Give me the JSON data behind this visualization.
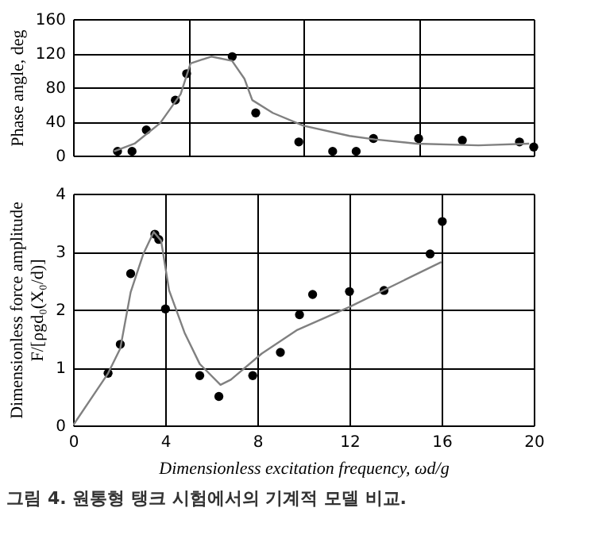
{
  "chart_data": [
    {
      "type": "scatter",
      "ylabel": "Phase angle, deg",
      "xlim": [
        0,
        20
      ],
      "xticks": [
        0,
        5,
        10,
        15,
        20
      ],
      "ylim": [
        0,
        160
      ],
      "yticks": [
        0,
        40,
        80,
        120,
        160
      ],
      "grid": true,
      "tick_labels": "y",
      "series": [
        {
          "color": "#000000",
          "marker": "circle",
          "x": [
            1.93,
            2.56,
            3.18,
            4.44,
            4.93,
            6.91,
            7.93,
            9.8,
            11.27,
            12.29,
            13.04,
            15.0,
            16.9,
            19.38,
            20.0
          ],
          "values": [
            5,
            5,
            30,
            65,
            96,
            116,
            50,
            16,
            5,
            5,
            20,
            20,
            18,
            16,
            10
          ]
        },
        {
          "type": "line",
          "color": "#808080",
          "line_style": "solid",
          "x": [
            1.78,
            2.67,
            3.78,
            4.67,
            5.1,
            6.0,
            6.9,
            7.44,
            7.78,
            8.67,
            10.0,
            12.0,
            13.1,
            14.9,
            17.6,
            19.8
          ],
          "values": [
            5,
            14,
            38,
            72,
            108,
            116,
            111,
            90,
            65,
            50,
            35,
            23,
            19,
            14,
            12,
            14
          ]
        }
      ]
    },
    {
      "type": "scatter",
      "xlabel": "Dimensionless excitation frequency, ωd/g",
      "ylabel": "Dimensionless force amplitude\nF/[ρgd₀(X₀/d)]",
      "xlim": [
        0,
        20
      ],
      "xticks": [
        0,
        4,
        8,
        12,
        16,
        20
      ],
      "ylim": [
        0,
        4
      ],
      "yticks": [
        0,
        1,
        2,
        3,
        4
      ],
      "grid": true,
      "annotations": [
        "그림 4. 원통형 탱크 시험에서의 기계적 모델 비교."
      ],
      "series": [
        {
          "color": "#000000",
          "marker": "circle",
          "x": [
            1.52,
            2.05,
            2.5,
            3.55,
            3.72,
            4.01,
            5.5,
            6.33,
            7.8,
            9.0,
            9.83,
            10.4,
            12.0,
            13.5,
            15.5,
            16.03
          ],
          "values": [
            0.9,
            1.4,
            2.62,
            3.3,
            3.21,
            2.01,
            0.86,
            0.5,
            0.86,
            1.26,
            1.91,
            2.26,
            2.31,
            2.33,
            2.96,
            3.52
          ]
        },
        {
          "type": "line",
          "color": "#808080",
          "line_style": "solid",
          "x": [
            0,
            1.52,
            2.05,
            2.5,
            3.05,
            3.5,
            3.82,
            4.17,
            4.84,
            5.5,
            6.4,
            6.85,
            8.19,
            9.74,
            11.97,
            15.99
          ],
          "values": [
            0,
            0.9,
            1.33,
            2.3,
            2.96,
            3.34,
            3.19,
            2.33,
            1.6,
            1.06,
            0.7,
            0.79,
            1.24,
            1.65,
            2.04,
            2.82
          ]
        }
      ]
    }
  ]
}
